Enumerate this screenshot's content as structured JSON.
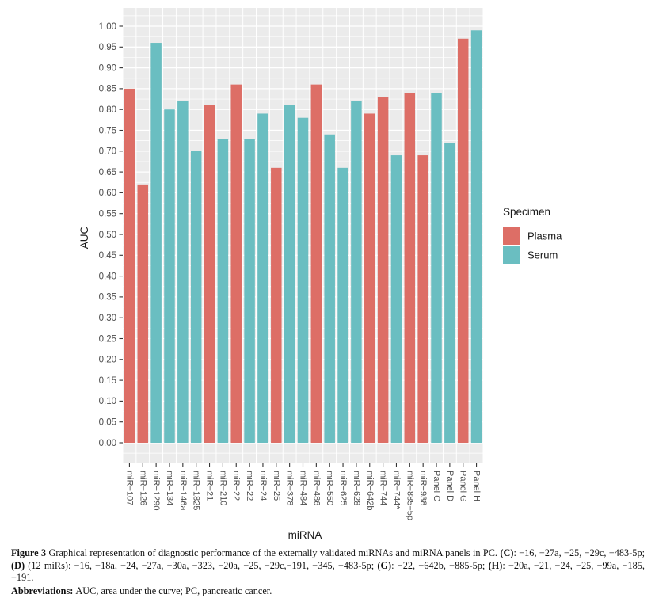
{
  "chart_data": {
    "type": "bar",
    "title": "",
    "xlabel": "miRNA",
    "ylabel": "AUC",
    "ylim": [
      0.0,
      1.0
    ],
    "ytick_step": 0.05,
    "ytick_minor_step": 0.025,
    "grid": true,
    "legend_position": "right",
    "legend_title": "Specimen",
    "legend": [
      {
        "name": "Plasma",
        "color": "#DD6E66"
      },
      {
        "name": "Serum",
        "color": "#6ABEC1"
      }
    ],
    "bars": [
      {
        "label": "miR−107",
        "specimen": "Plasma",
        "auc": 0.85
      },
      {
        "label": "miR−126",
        "specimen": "Plasma",
        "auc": 0.62
      },
      {
        "label": "miR−1290",
        "specimen": "Serum",
        "auc": 0.96
      },
      {
        "label": "miR−134",
        "specimen": "Serum",
        "auc": 0.8
      },
      {
        "label": "miR−146a",
        "specimen": "Serum",
        "auc": 0.82
      },
      {
        "label": "miR−1825",
        "specimen": "Serum",
        "auc": 0.7
      },
      {
        "label": "miR−21",
        "specimen": "Plasma",
        "auc": 0.81
      },
      {
        "label": "miR−210",
        "specimen": "Serum",
        "auc": 0.73
      },
      {
        "label": "miR−22",
        "specimen": "Plasma",
        "auc": 0.86
      },
      {
        "label": "miR−22",
        "specimen": "Serum",
        "auc": 0.73
      },
      {
        "label": "miR−24",
        "specimen": "Serum",
        "auc": 0.79
      },
      {
        "label": "miR−25",
        "specimen": "Plasma",
        "auc": 0.66
      },
      {
        "label": "miR−378",
        "specimen": "Serum",
        "auc": 0.81
      },
      {
        "label": "miR−484",
        "specimen": "Serum",
        "auc": 0.78
      },
      {
        "label": "miR−486",
        "specimen": "Plasma",
        "auc": 0.86
      },
      {
        "label": "miR−550",
        "specimen": "Serum",
        "auc": 0.74
      },
      {
        "label": "miR−625",
        "specimen": "Serum",
        "auc": 0.66
      },
      {
        "label": "miR−628",
        "specimen": "Serum",
        "auc": 0.82
      },
      {
        "label": "miR−642b",
        "specimen": "Plasma",
        "auc": 0.79
      },
      {
        "label": "miR−744",
        "specimen": "Plasma",
        "auc": 0.83
      },
      {
        "label": "miR−744*",
        "specimen": "Serum",
        "auc": 0.69
      },
      {
        "label": "miR−885−5p",
        "specimen": "Plasma",
        "auc": 0.84
      },
      {
        "label": "miR−938",
        "specimen": "Plasma",
        "auc": 0.69
      },
      {
        "label": "Panel C",
        "specimen": "Serum",
        "auc": 0.84
      },
      {
        "label": "Panel D",
        "specimen": "Serum",
        "auc": 0.72
      },
      {
        "label": "Panel G",
        "specimen": "Plasma",
        "auc": 0.97
      },
      {
        "label": "Panel H",
        "specimen": "Serum",
        "auc": 0.99
      }
    ],
    "colors": {
      "panel_background": "#EBEBEB",
      "gridline": "#FFFFFF",
      "axis_text": "#4D4D4D",
      "tick_mark": "#333333",
      "title_text": "#1A1A1A"
    }
  },
  "caption": {
    "paragraphs": [
      {
        "segments": [
          {
            "text": "Figure 3 ",
            "bold": true
          },
          {
            "text": "Graphical representation of diagnostic performance of the externally validated miRNAs and miRNA panels in PC. ",
            "bold": false
          },
          {
            "text": "(C)",
            "bold": true
          },
          {
            "text": ": −16, −27a, −25, −29c, −483-5p; ",
            "bold": false
          },
          {
            "text": "(D)",
            "bold": true
          },
          {
            "text": " (12 miRs): −16, −18a, −24, −27a, −30a, −323, −20a, −25, −29c,−191, −345, −483-5p; ",
            "bold": false
          },
          {
            "text": "(G)",
            "bold": true
          },
          {
            "text": ": −22, −642b, −885-5p; ",
            "bold": false
          },
          {
            "text": "(H)",
            "bold": true
          },
          {
            "text": ": −20a, −21, −24, −25, −99a, −185, −191.",
            "bold": false
          }
        ]
      },
      {
        "segments": [
          {
            "text": "Abbreviations: ",
            "bold": true
          },
          {
            "text": "AUC, area under the curve; PC, pancreatic cancer.",
            "bold": false
          }
        ]
      }
    ]
  }
}
